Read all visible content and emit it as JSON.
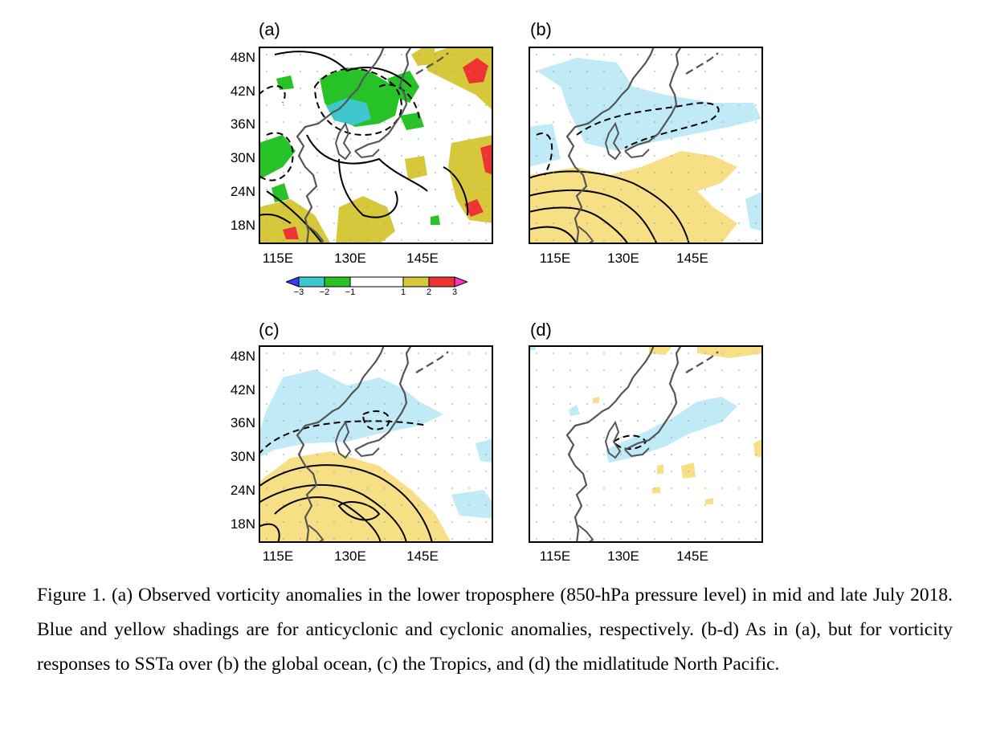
{
  "panels": [
    {
      "id": "a",
      "label": "(a)"
    },
    {
      "id": "b",
      "label": "(b)"
    },
    {
      "id": "c",
      "label": "(c)"
    },
    {
      "id": "d",
      "label": "(d)"
    }
  ],
  "lat_ticks": [
    "48N",
    "42N",
    "36N",
    "30N",
    "24N",
    "18N"
  ],
  "lon_ticks": [
    "115E",
    "130E",
    "145E"
  ],
  "colorbar": {
    "labels": [
      "−3",
      "−2",
      "−1",
      "1",
      "2",
      "3"
    ],
    "colors": [
      "#3a3aff",
      "#3ec7cc",
      "#26c226",
      "#ffffff",
      "#d6c83a",
      "#ee3333",
      "#ff33cc"
    ]
  },
  "colors": {
    "cyclonic": "#f7df86",
    "anticyclonic": "#bfeaf6",
    "coastline": "#555555"
  },
  "caption": "Figure 1. (a) Observed vorticity anomalies in the lower troposphere (850-hPa pressure level) in mid and late July 2018. Blue and yellow shadings are for anticyclonic and cyclonic anomalies, respectively. (b-d) As in (a), but for vorticity responses to SSTa over (b) the global ocean, (c) the Tropics, and (d) the midlatitude North Pacific."
}
